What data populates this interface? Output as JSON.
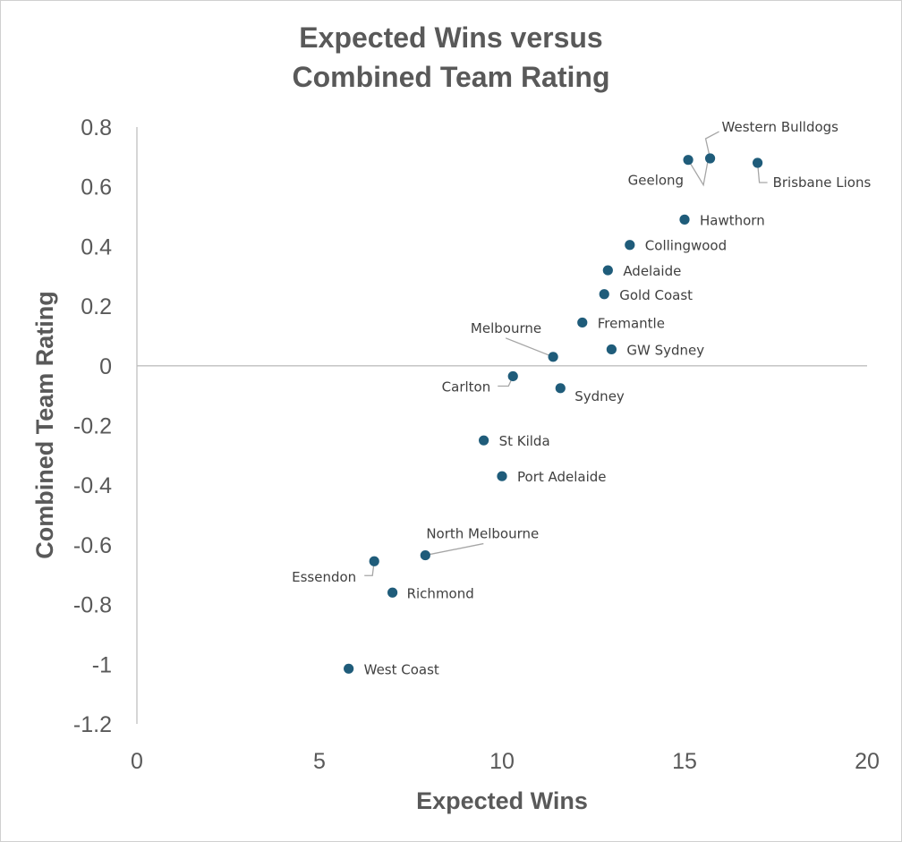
{
  "chart_data": {
    "type": "scatter",
    "title_lines": [
      "Expected Wins versus",
      "Combined Team Rating"
    ],
    "xlabel": "Expected Wins",
    "ylabel": "Combined Team Rating",
    "xlim": [
      0,
      20
    ],
    "ylim": [
      -1.2,
      0.8
    ],
    "x_ticks": [
      {
        "value": 0,
        "label": "0"
      },
      {
        "value": 5,
        "label": "5"
      },
      {
        "value": 10,
        "label": "10"
      },
      {
        "value": 15,
        "label": "15"
      },
      {
        "value": 20,
        "label": "20"
      }
    ],
    "y_ticks": [
      {
        "value": 0.8,
        "label": "0.8"
      },
      {
        "value": 0.6,
        "label": "0.6"
      },
      {
        "value": 0.4,
        "label": "0.4"
      },
      {
        "value": 0.2,
        "label": "0.2"
      },
      {
        "value": 0,
        "label": "0"
      },
      {
        "value": -0.2,
        "label": "-0.2"
      },
      {
        "value": -0.4,
        "label": "-0.4"
      },
      {
        "value": -0.6,
        "label": "-0.6"
      },
      {
        "value": -0.8,
        "label": "-0.8"
      },
      {
        "value": -1,
        "label": "-1"
      },
      {
        "value": -1.2,
        "label": "-1.2"
      }
    ],
    "marker_color": "#1f5c7a",
    "points": [
      {
        "label": "Western Bulldogs",
        "x": 15.7,
        "y": 0.695
      },
      {
        "label": "Geelong",
        "x": 15.1,
        "y": 0.69
      },
      {
        "label": "Brisbane Lions",
        "x": 17.0,
        "y": 0.68
      },
      {
        "label": "Hawthorn",
        "x": 15.0,
        "y": 0.49
      },
      {
        "label": "Collingwood",
        "x": 13.5,
        "y": 0.405
      },
      {
        "label": "Adelaide",
        "x": 12.9,
        "y": 0.32
      },
      {
        "label": "Gold Coast",
        "x": 12.8,
        "y": 0.24
      },
      {
        "label": "Fremantle",
        "x": 12.2,
        "y": 0.145
      },
      {
        "label": "GW Sydney",
        "x": 13.0,
        "y": 0.055
      },
      {
        "label": "Melbourne",
        "x": 11.4,
        "y": 0.03
      },
      {
        "label": "Carlton",
        "x": 10.3,
        "y": -0.035
      },
      {
        "label": "Sydney",
        "x": 11.6,
        "y": -0.075
      },
      {
        "label": "St Kilda",
        "x": 9.5,
        "y": -0.25
      },
      {
        "label": "Port Adelaide",
        "x": 10.0,
        "y": -0.37
      },
      {
        "label": "North Melbourne",
        "x": 7.9,
        "y": -0.635
      },
      {
        "label": "Essendon",
        "x": 6.5,
        "y": -0.655
      },
      {
        "label": "Richmond",
        "x": 7.0,
        "y": -0.76
      },
      {
        "label": "West Coast",
        "x": 5.8,
        "y": -1.015
      }
    ]
  }
}
